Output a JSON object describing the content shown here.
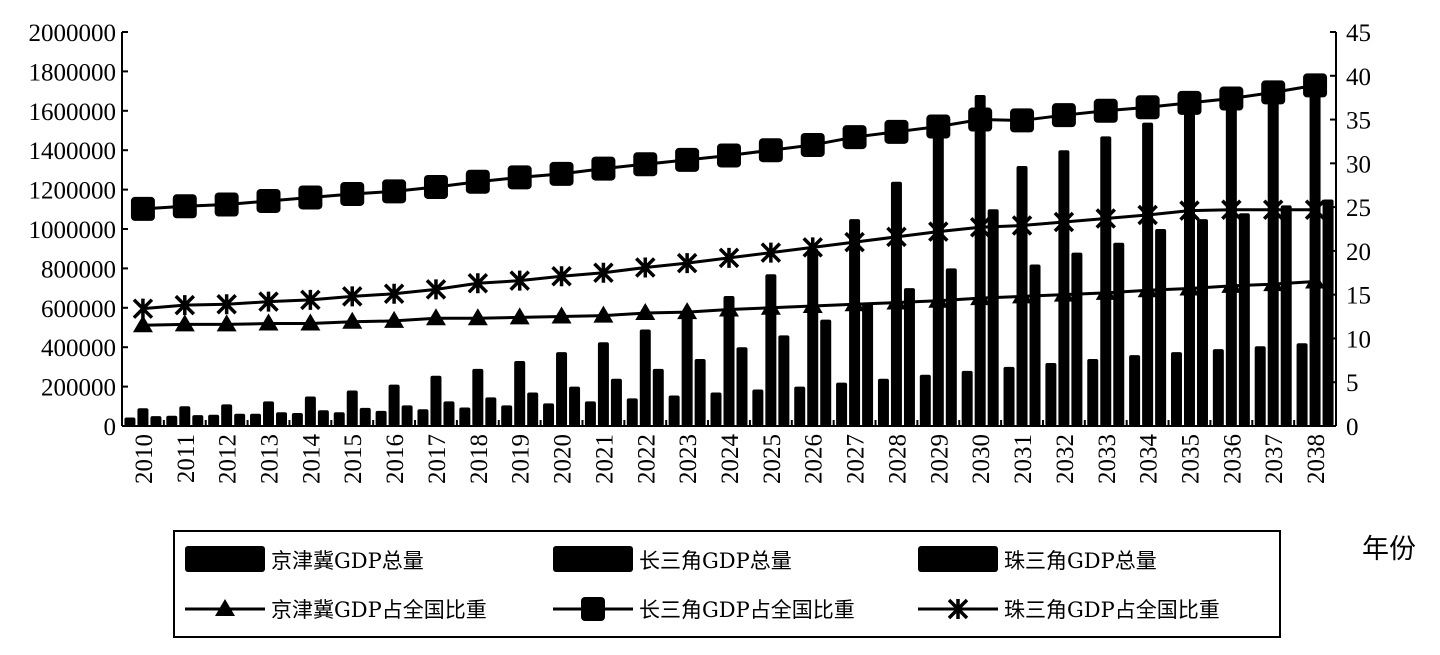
{
  "chart_data": {
    "type": "bar",
    "categories": [
      "2010",
      "2011",
      "2012",
      "2013",
      "2014",
      "2015",
      "2016",
      "2017",
      "2018",
      "2019",
      "2020",
      "2021",
      "2022",
      "2023",
      "2024",
      "2025",
      "2026",
      "2027",
      "2028",
      "2029",
      "2030",
      "2031",
      "2032",
      "2033",
      "2034",
      "2035",
      "2036",
      "2037",
      "2038"
    ],
    "xlabel": "年份",
    "ylim_left": [
      0,
      2000000
    ],
    "yticks_left": [
      0,
      200000,
      400000,
      600000,
      800000,
      1000000,
      1200000,
      1400000,
      1600000,
      1800000,
      2000000
    ],
    "ylim_right": [
      0,
      45
    ],
    "yticks_right": [
      0,
      5,
      10,
      15,
      20,
      25,
      30,
      35,
      40,
      45
    ],
    "grid": false,
    "legend_position": "bottom",
    "series": [
      {
        "name": "京津冀GDP总量",
        "kind": "bar",
        "axis": "left",
        "color": "#000000",
        "values": [
          43000,
          52000,
          57000,
          62000,
          66000,
          70000,
          77000,
          85000,
          94000,
          105000,
          115000,
          125000,
          140000,
          155000,
          170000,
          185000,
          200000,
          220000,
          240000,
          260000,
          280000,
          300000,
          320000,
          340000,
          360000,
          375000,
          390000,
          405000,
          420000
        ]
      },
      {
        "name": "长三角GDP总量",
        "kind": "bar",
        "axis": "left",
        "color": "#000000",
        "values": [
          90000,
          100000,
          110000,
          125000,
          150000,
          180000,
          210000,
          255000,
          290000,
          330000,
          375000,
          425000,
          490000,
          560000,
          660000,
          770000,
          900000,
          1050000,
          1240000,
          1500000,
          1680000,
          1320000,
          1400000,
          1470000,
          1540000,
          1600000,
          1640000,
          1710000,
          1770000
        ]
      },
      {
        "name": "珠三角GDP总量",
        "kind": "bar",
        "axis": "left",
        "color": "#000000",
        "values": [
          50000,
          55000,
          62000,
          70000,
          80000,
          92000,
          105000,
          125000,
          145000,
          170000,
          200000,
          240000,
          290000,
          340000,
          400000,
          460000,
          540000,
          620000,
          700000,
          800000,
          1100000,
          820000,
          880000,
          930000,
          1000000,
          1050000,
          1080000,
          1120000,
          1150000
        ]
      },
      {
        "name": "京津冀GDP占全国比重",
        "kind": "line",
        "axis": "right",
        "marker": "triangle",
        "color": "#000000",
        "values": [
          11.5,
          11.6,
          11.6,
          11.7,
          11.7,
          11.9,
          12.0,
          12.3,
          12.3,
          12.4,
          12.5,
          12.6,
          12.9,
          13.0,
          13.3,
          13.5,
          13.7,
          13.9,
          14.1,
          14.3,
          14.6,
          14.8,
          15.0,
          15.2,
          15.5,
          15.7,
          16.0,
          16.2,
          16.5
        ]
      },
      {
        "name": "长三角GDP占全国比重",
        "kind": "line",
        "axis": "right",
        "marker": "square",
        "color": "#000000",
        "values": [
          24.8,
          25.1,
          25.3,
          25.7,
          26.1,
          26.5,
          26.8,
          27.3,
          27.9,
          28.4,
          28.8,
          29.4,
          29.9,
          30.4,
          30.9,
          31.5,
          32.1,
          33.0,
          33.6,
          34.2,
          35.0,
          34.9,
          35.5,
          36.0,
          36.4,
          36.9,
          37.4,
          38.1,
          38.9
        ]
      },
      {
        "name": "珠三角GDP占全国比重",
        "kind": "line",
        "axis": "right",
        "marker": "asterisk",
        "color": "#000000",
        "values": [
          13.4,
          13.8,
          13.9,
          14.2,
          14.4,
          14.8,
          15.1,
          15.6,
          16.3,
          16.6,
          17.1,
          17.5,
          18.1,
          18.6,
          19.2,
          19.8,
          20.4,
          21.0,
          21.6,
          22.2,
          22.7,
          22.9,
          23.3,
          23.7,
          24.1,
          24.6,
          24.7,
          24.7,
          24.7
        ]
      }
    ]
  }
}
